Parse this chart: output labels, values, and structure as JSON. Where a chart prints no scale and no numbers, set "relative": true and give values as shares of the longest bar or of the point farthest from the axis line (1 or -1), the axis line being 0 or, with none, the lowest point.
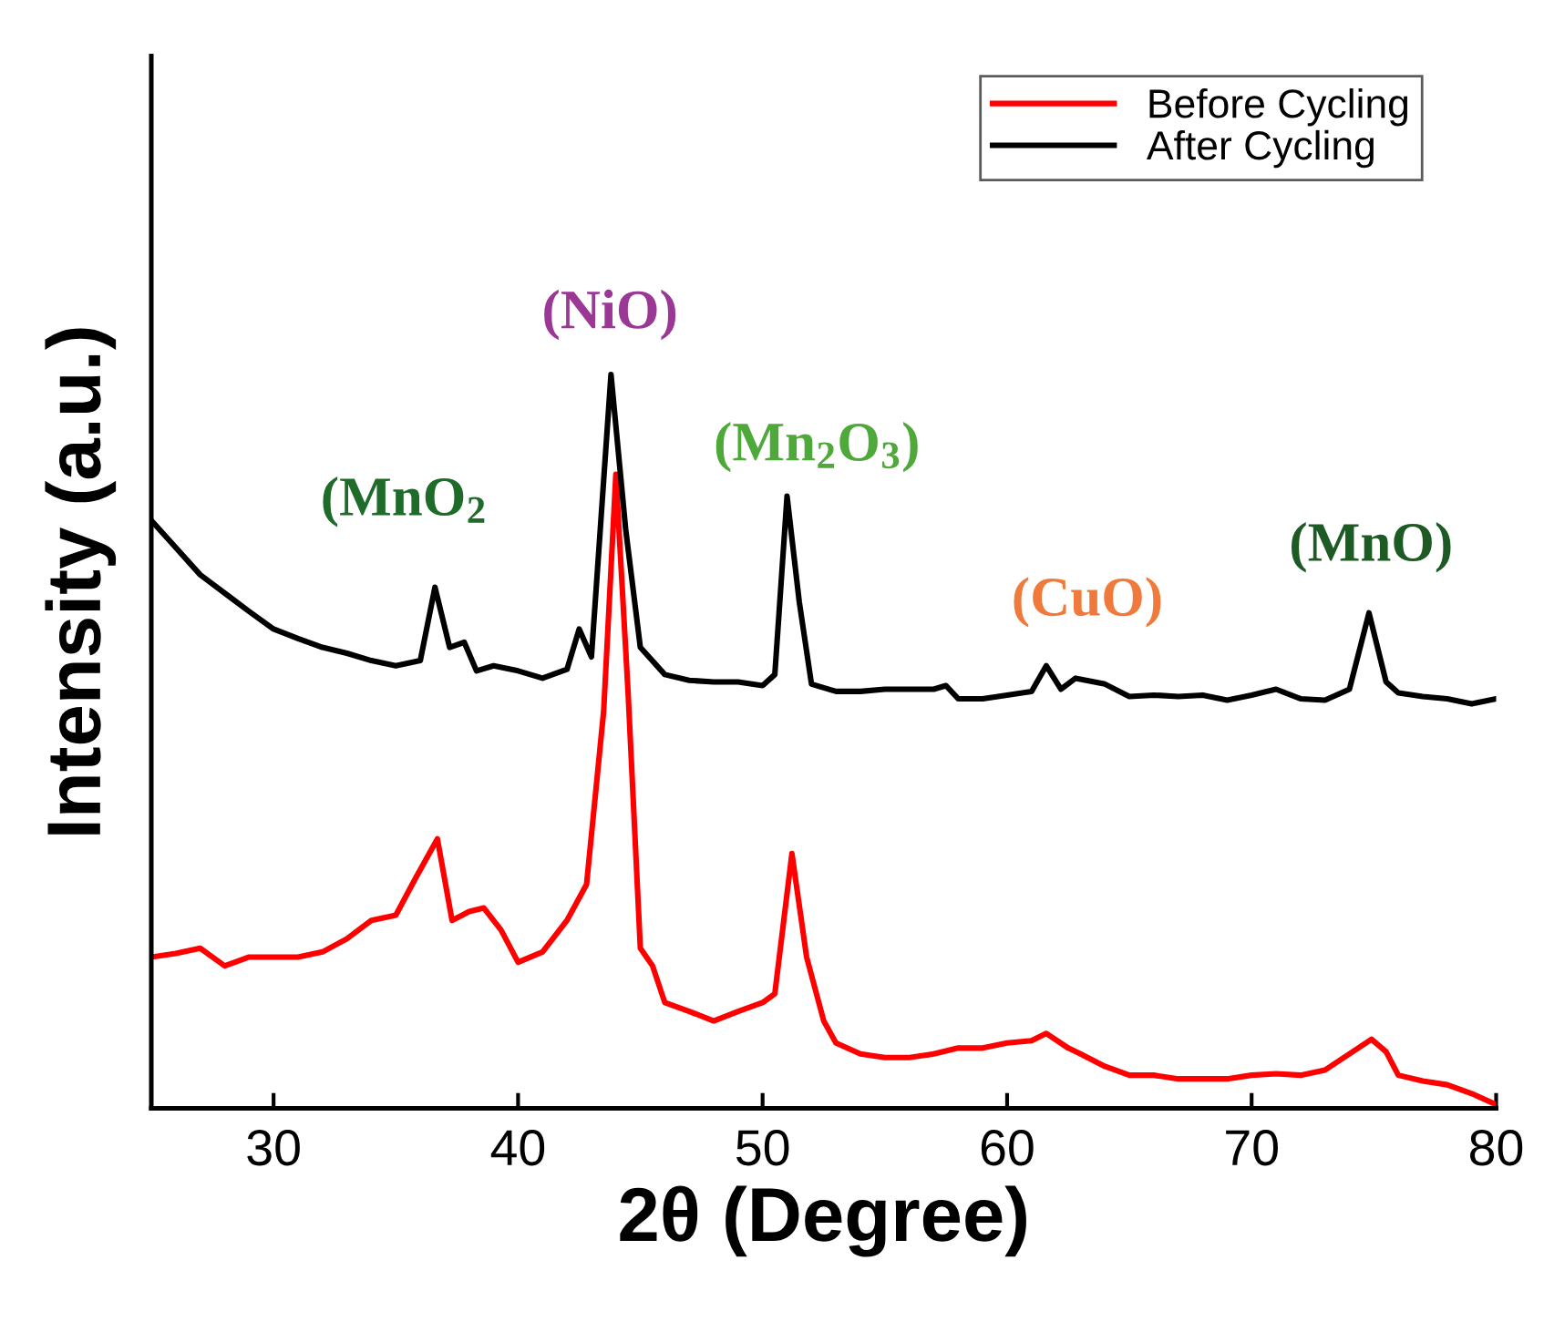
{
  "chart_data": {
    "type": "line",
    "relative": true,
    "xlabel": "2θ (Degree)",
    "ylabel": "Intensity (a.u.)",
    "xlim": [
      25,
      80
    ],
    "xticks": [
      30,
      40,
      50,
      60,
      70,
      80
    ],
    "tick_labels": "x",
    "grid": false,
    "legend": "top right",
    "line_style": "solid",
    "marker": "none",
    "series": [
      {
        "name": "Before Cycling",
        "color": "#ff0000",
        "x": [
          25,
          26,
          27,
          28,
          29,
          30,
          31,
          32,
          33,
          34,
          35,
          35.8,
          36.7,
          37.3,
          38,
          38.6,
          39.3,
          40,
          41,
          42,
          42.8,
          43.5,
          44,
          44.5,
          45,
          45.5,
          46,
          47,
          48,
          49,
          50,
          50.5,
          51.2,
          51.8,
          52.5,
          53,
          54,
          55,
          56,
          57,
          58,
          59,
          60,
          61,
          61.6,
          62.5,
          63,
          64,
          65,
          66,
          67,
          68,
          69,
          70,
          71,
          72,
          73,
          74,
          74.9,
          75.5,
          76,
          77,
          78,
          79,
          80
        ],
        "values": [
          0.206,
          0.211,
          0.218,
          0.194,
          0.206,
          0.206,
          0.206,
          0.213,
          0.231,
          0.256,
          0.263,
          0.313,
          0.367,
          0.256,
          0.268,
          0.273,
          0.243,
          0.199,
          0.213,
          0.256,
          0.305,
          0.541,
          0.864,
          0.566,
          0.218,
          0.194,
          0.144,
          0.132,
          0.119,
          0.132,
          0.144,
          0.156,
          0.347,
          0.206,
          0.119,
          0.089,
          0.074,
          0.069,
          0.069,
          0.074,
          0.082,
          0.082,
          0.089,
          0.092,
          0.102,
          0.082,
          0.074,
          0.057,
          0.045,
          0.045,
          0.04,
          0.04,
          0.04,
          0.045,
          0.047,
          0.045,
          0.052,
          0.074,
          0.094,
          0.077,
          0.045,
          0.037,
          0.032,
          0.02,
          0.005
        ]
      },
      {
        "name": "After Cycling",
        "color": "#000000",
        "x": [
          25,
          26,
          27,
          28,
          29,
          30,
          31,
          32,
          33,
          34,
          35,
          36,
          36.6,
          37.2,
          37.8,
          38.3,
          39,
          40,
          41,
          42,
          42.5,
          43,
          43.8,
          44.4,
          45,
          46,
          47,
          48,
          49,
          50,
          50.5,
          51,
          51.5,
          52,
          53,
          54,
          55,
          56,
          57,
          57.5,
          58,
          59,
          60,
          61,
          61.6,
          62.2,
          62.8,
          64,
          65,
          66,
          67,
          68,
          69,
          70,
          71,
          72,
          73,
          74,
          74.8,
          75.5,
          76,
          77,
          78,
          79,
          80
        ],
        "values": [
          0.801,
          0.764,
          0.727,
          0.702,
          0.677,
          0.653,
          0.64,
          0.628,
          0.62,
          0.61,
          0.603,
          0.61,
          0.71,
          0.628,
          0.635,
          0.596,
          0.603,
          0.596,
          0.586,
          0.598,
          0.653,
          0.615,
          1,
          0.789,
          0.628,
          0.591,
          0.583,
          0.581,
          0.581,
          0.576,
          0.591,
          0.834,
          0.69,
          0.578,
          0.568,
          0.568,
          0.571,
          0.571,
          0.571,
          0.576,
          0.558,
          0.558,
          0.563,
          0.568,
          0.603,
          0.571,
          0.586,
          0.578,
          0.561,
          0.563,
          0.561,
          0.563,
          0.556,
          0.563,
          0.571,
          0.558,
          0.556,
          0.571,
          0.675,
          0.581,
          0.566,
          0.561,
          0.558,
          0.551,
          0.558
        ]
      }
    ],
    "annotations": [
      "(MnO$_{2}$",
      "(NiO)",
      "(Mn$_{2}$O$_{3}$)",
      "(CuO)",
      "(MnO)"
    ]
  }
}
